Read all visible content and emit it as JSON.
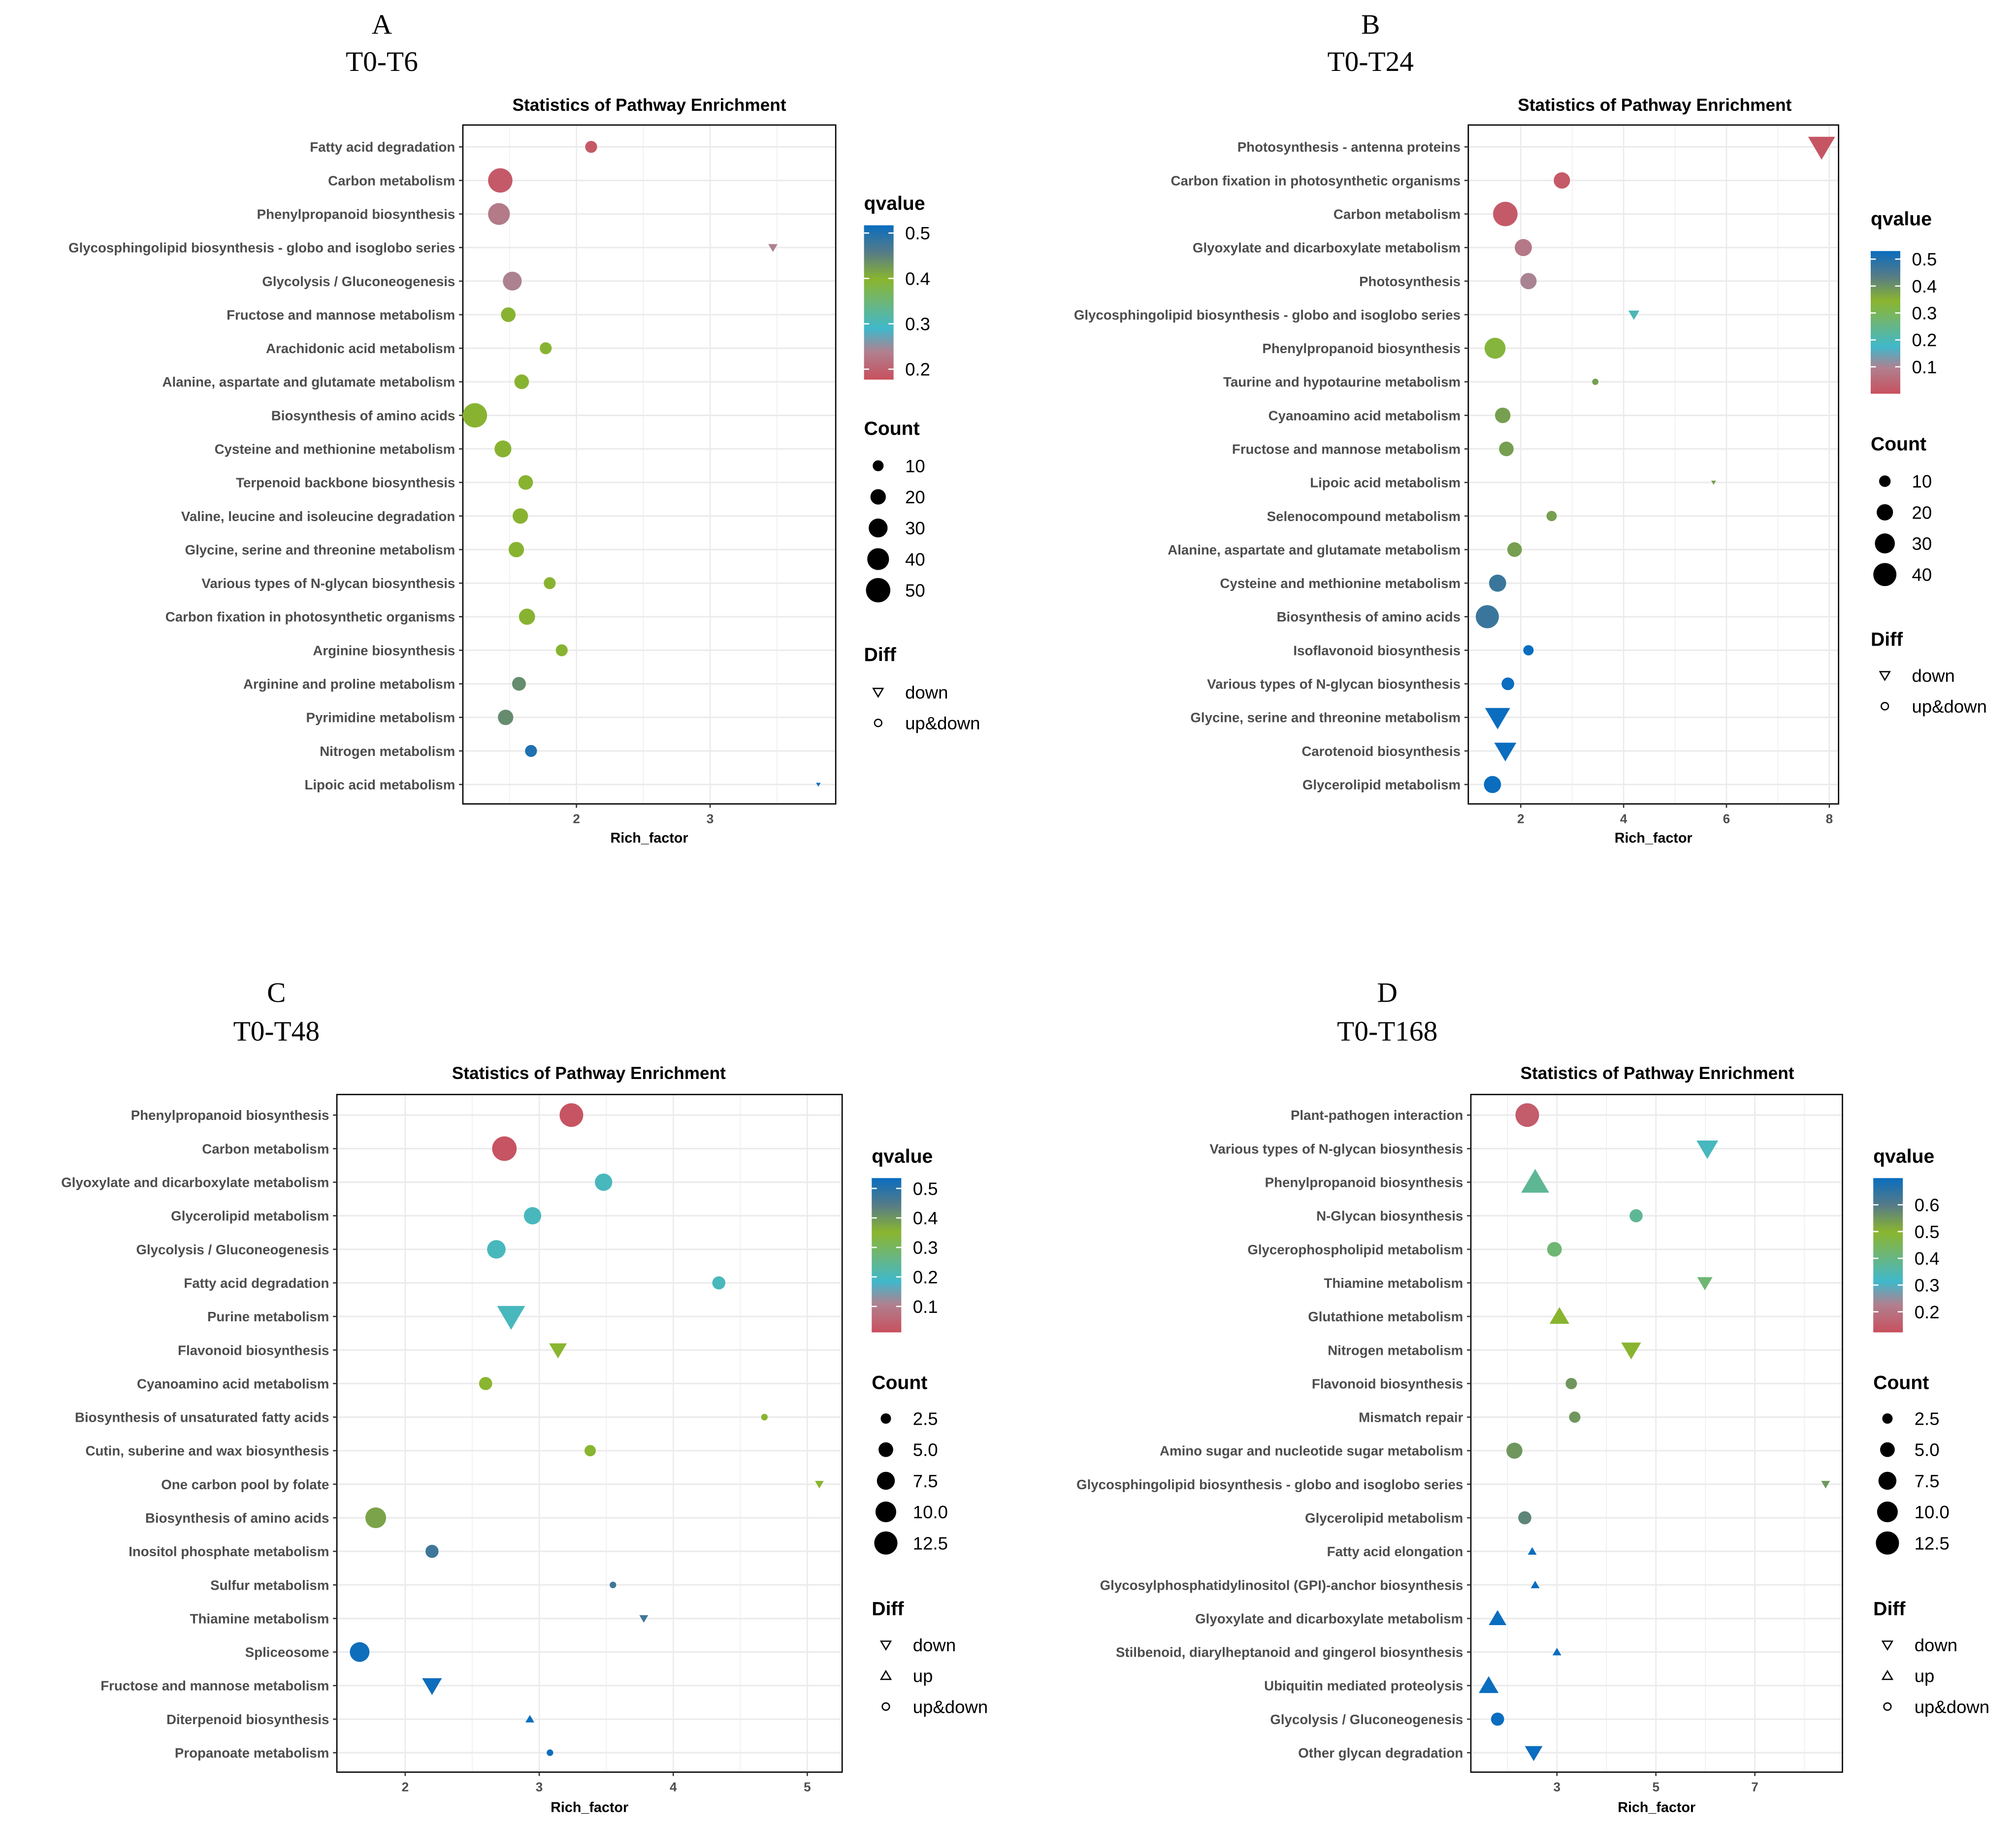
{
  "chart_data": [
    {
      "type": "scatter",
      "panel_letter": "A",
      "comparison": "T0-T6",
      "title": "Statistics of Pathway Enrichment",
      "xlabel": "Rich_factor",
      "ylabel": "",
      "xticks": [
        2,
        3
      ],
      "xlim": [
        1.15,
        3.94
      ],
      "grid": true,
      "legend_placement": "right",
      "legend": {
        "qvalue_title": "qvalue",
        "qvalue_ticks": [
          "0.5",
          "0.4",
          "0.3",
          "0.2"
        ],
        "qvalue_range": [
          0.177,
          0.517
        ],
        "count_title": "Count",
        "count_levels": [
          "10",
          "20",
          "30",
          "40",
          "50"
        ],
        "diff_title": "Diff",
        "diff_levels": [
          "down",
          "up&down"
        ]
      },
      "pathways": [
        {
          "name": "Fatty acid degradation",
          "rich_factor": 2.11,
          "count": 12,
          "qvalue": 0.19,
          "diff": "up&down"
        },
        {
          "name": "Carbon metabolism",
          "rich_factor": 1.43,
          "count": 50,
          "qvalue": 0.19,
          "diff": "up&down"
        },
        {
          "name": "Phenylpropanoid biosynthesis",
          "rich_factor": 1.42,
          "count": 40,
          "qvalue": 0.23,
          "diff": "up&down"
        },
        {
          "name": "Glycosphingolipid biosynthesis - globo and isoglobo series",
          "rich_factor": 3.47,
          "count": 4,
          "qvalue": 0.24,
          "diff": "down"
        },
        {
          "name": "Glycolysis / Gluconeogenesis",
          "rich_factor": 1.52,
          "count": 30,
          "qvalue": 0.24,
          "diff": "up&down"
        },
        {
          "name": "Fructose and mannose metabolism",
          "rich_factor": 1.49,
          "count": 18,
          "qvalue": 0.4,
          "diff": "up&down"
        },
        {
          "name": "Arachidonic acid metabolism",
          "rich_factor": 1.77,
          "count": 12,
          "qvalue": 0.4,
          "diff": "up&down"
        },
        {
          "name": "Alanine, aspartate and glutamate metabolism",
          "rich_factor": 1.59,
          "count": 18,
          "qvalue": 0.4,
          "diff": "up&down"
        },
        {
          "name": "Biosynthesis of amino acids",
          "rich_factor": 1.24,
          "count": 50,
          "qvalue": 0.4,
          "diff": "up&down"
        },
        {
          "name": "Cysteine and methionine metabolism",
          "rich_factor": 1.45,
          "count": 24,
          "qvalue": 0.4,
          "diff": "up&down"
        },
        {
          "name": "Terpenoid backbone biosynthesis",
          "rich_factor": 1.62,
          "count": 18,
          "qvalue": 0.4,
          "diff": "up&down"
        },
        {
          "name": "Valine, leucine and isoleucine degradation",
          "rich_factor": 1.58,
          "count": 20,
          "qvalue": 0.4,
          "diff": "up&down"
        },
        {
          "name": "Glycine, serine and threonine metabolism",
          "rich_factor": 1.55,
          "count": 20,
          "qvalue": 0.4,
          "diff": "up&down"
        },
        {
          "name": "Various types of N-glycan biosynthesis",
          "rich_factor": 1.8,
          "count": 12,
          "qvalue": 0.4,
          "diff": "up&down"
        },
        {
          "name": "Carbon fixation in photosynthetic organisms",
          "rich_factor": 1.63,
          "count": 22,
          "qvalue": 0.4,
          "diff": "up&down"
        },
        {
          "name": "Arginine biosynthesis",
          "rich_factor": 1.89,
          "count": 12,
          "qvalue": 0.4,
          "diff": "up&down"
        },
        {
          "name": "Arginine and proline metabolism",
          "rich_factor": 1.57,
          "count": 16,
          "qvalue": 0.44,
          "diff": "up&down"
        },
        {
          "name": "Pyrimidine metabolism",
          "rich_factor": 1.47,
          "count": 20,
          "qvalue": 0.44,
          "diff": "up&down"
        },
        {
          "name": "Nitrogen metabolism",
          "rich_factor": 1.66,
          "count": 12,
          "qvalue": 0.5,
          "diff": "up&down"
        },
        {
          "name": "Lipoic acid metabolism",
          "rich_factor": 3.81,
          "count": 1,
          "qvalue": 0.51,
          "diff": "down"
        }
      ]
    },
    {
      "type": "scatter",
      "panel_letter": "B",
      "comparison": "T0-T24",
      "title": "Statistics of Pathway Enrichment",
      "xlabel": "Rich_factor",
      "ylabel": "",
      "xticks": [
        2,
        4,
        6,
        8
      ],
      "xlim": [
        0.98,
        8.18
      ],
      "grid": true,
      "legend_placement": "right",
      "legend": {
        "qvalue_title": "qvalue",
        "qvalue_ticks": [
          "0.5",
          "0.4",
          "0.3",
          "0.2",
          "0.1"
        ],
        "qvalue_range": [
          0.0,
          0.53
        ],
        "count_title": "Count",
        "count_levels": [
          "10",
          "20",
          "30",
          "40"
        ],
        "diff_title": "Diff",
        "diff_levels": [
          "down",
          "up&down"
        ]
      },
      "pathways": [
        {
          "name": "Photosynthesis - antenna proteins",
          "rich_factor": 7.85,
          "count": 30,
          "qvalue": 0.01,
          "diff": "down"
        },
        {
          "name": "Carbon fixation in photosynthetic organisms",
          "rich_factor": 2.8,
          "count": 20,
          "qvalue": 0.02,
          "diff": "up&down"
        },
        {
          "name": "Carbon metabolism",
          "rich_factor": 1.7,
          "count": 45,
          "qvalue": 0.02,
          "diff": "up&down"
        },
        {
          "name": "Glyoxylate and dicarboxylate metabolism",
          "rich_factor": 2.05,
          "count": 22,
          "qvalue": 0.08,
          "diff": "up&down"
        },
        {
          "name": "Photosynthesis",
          "rich_factor": 2.15,
          "count": 20,
          "qvalue": 0.1,
          "diff": "up&down"
        },
        {
          "name": "Glycosphingolipid biosynthesis - globo and isoglobo series",
          "rich_factor": 4.2,
          "count": 5,
          "qvalue": 0.2,
          "diff": "down"
        },
        {
          "name": "Phenylpropanoid biosynthesis",
          "rich_factor": 1.5,
          "count": 33,
          "qvalue": 0.33,
          "diff": "up&down"
        },
        {
          "name": "Taurine and hypotaurine metabolism",
          "rich_factor": 3.45,
          "count": 3,
          "qvalue": 0.38,
          "diff": "up&down"
        },
        {
          "name": "Cyanoamino acid metabolism",
          "rich_factor": 1.65,
          "count": 18,
          "qvalue": 0.38,
          "diff": "up&down"
        },
        {
          "name": "Fructose and mannose metabolism",
          "rich_factor": 1.72,
          "count": 16,
          "qvalue": 0.38,
          "diff": "up&down"
        },
        {
          "name": "Lipoic acid metabolism",
          "rich_factor": 5.75,
          "count": 1,
          "qvalue": 0.38,
          "diff": "down"
        },
        {
          "name": "Selenocompound metabolism",
          "rich_factor": 2.6,
          "count": 8,
          "qvalue": 0.38,
          "diff": "up&down"
        },
        {
          "name": "Alanine, aspartate and glutamate metabolism",
          "rich_factor": 1.88,
          "count": 16,
          "qvalue": 0.38,
          "diff": "up&down"
        },
        {
          "name": "Cysteine and methionine metabolism",
          "rich_factor": 1.55,
          "count": 22,
          "qvalue": 0.47,
          "diff": "up&down"
        },
        {
          "name": "Biosynthesis of amino acids",
          "rich_factor": 1.35,
          "count": 40,
          "qvalue": 0.47,
          "diff": "up&down"
        },
        {
          "name": "Isoflavonoid biosynthesis",
          "rich_factor": 2.15,
          "count": 8,
          "qvalue": 0.53,
          "diff": "up&down"
        },
        {
          "name": "Various types of N-glycan biosynthesis",
          "rich_factor": 1.75,
          "count": 12,
          "qvalue": 0.53,
          "diff": "up&down"
        },
        {
          "name": "Glycine, serine and threonine metabolism",
          "rich_factor": 1.55,
          "count": 26,
          "qvalue": 0.53,
          "diff": "down"
        },
        {
          "name": "Carotenoid biosynthesis",
          "rich_factor": 1.7,
          "count": 20,
          "qvalue": 0.53,
          "diff": "down"
        },
        {
          "name": "Glycerolipid metabolism",
          "rich_factor": 1.45,
          "count": 22,
          "qvalue": 0.53,
          "diff": "up&down"
        }
      ]
    },
    {
      "type": "scatter",
      "panel_letter": "C",
      "comparison": "T0-T48",
      "title": "Statistics of Pathway Enrichment",
      "xlabel": "Rich_factor",
      "ylabel": "",
      "xticks": [
        2,
        3,
        4,
        5
      ],
      "xlim": [
        1.49,
        5.26
      ],
      "grid": true,
      "legend_placement": "right",
      "legend": {
        "qvalue_title": "qvalue",
        "qvalue_ticks": [
          "0.5",
          "0.4",
          "0.3",
          "0.2",
          "0.1"
        ],
        "qvalue_range": [
          0.012,
          0.535
        ],
        "count_title": "Count",
        "count_levels": [
          "2.5",
          "5.0",
          "7.5",
          "10.0",
          "12.5"
        ],
        "diff_title": "Diff",
        "diff_levels": [
          "down",
          "up",
          "up&down"
        ]
      },
      "pathways": [
        {
          "name": "Phenylpropanoid biosynthesis",
          "rich_factor": 3.24,
          "count": 13,
          "qvalue": 0.02,
          "diff": "up&down"
        },
        {
          "name": "Carbon metabolism",
          "rich_factor": 2.74,
          "count": 14,
          "qvalue": 0.02,
          "diff": "up&down"
        },
        {
          "name": "Glyoxylate and dicarboxylate metabolism",
          "rich_factor": 3.48,
          "count": 7,
          "qvalue": 0.2,
          "diff": "up&down"
        },
        {
          "name": "Glycerolipid metabolism",
          "rich_factor": 2.95,
          "count": 7,
          "qvalue": 0.2,
          "diff": "up&down"
        },
        {
          "name": "Glycolysis / Gluconeogenesis",
          "rich_factor": 2.68,
          "count": 8,
          "qvalue": 0.2,
          "diff": "up&down"
        },
        {
          "name": "Fatty acid degradation",
          "rich_factor": 4.34,
          "count": 4,
          "qvalue": 0.2,
          "diff": "up&down"
        },
        {
          "name": "Purine metabolism",
          "rich_factor": 2.79,
          "count": 10,
          "qvalue": 0.2,
          "diff": "down"
        },
        {
          "name": "Flavonoid biosynthesis",
          "rich_factor": 3.14,
          "count": 4,
          "qvalue": 0.35,
          "diff": "down"
        },
        {
          "name": "Cyanoamino acid metabolism",
          "rich_factor": 2.6,
          "count": 4,
          "qvalue": 0.35,
          "diff": "up&down"
        },
        {
          "name": "Biosynthesis of unsaturated fatty acids",
          "rich_factor": 4.68,
          "count": 1,
          "qvalue": 0.35,
          "diff": "up&down"
        },
        {
          "name": "Cutin, suberine and wax biosynthesis",
          "rich_factor": 3.38,
          "count": 3,
          "qvalue": 0.35,
          "diff": "up&down"
        },
        {
          "name": "One carbon pool by folate",
          "rich_factor": 5.09,
          "count": 1,
          "qvalue": 0.35,
          "diff": "down"
        },
        {
          "name": "Biosynthesis of amino acids",
          "rich_factor": 1.78,
          "count": 10,
          "qvalue": 0.38,
          "diff": "up&down"
        },
        {
          "name": "Inositol phosphate metabolism",
          "rich_factor": 2.2,
          "count": 4,
          "qvalue": 0.47,
          "diff": "up&down"
        },
        {
          "name": "Sulfur metabolism",
          "rich_factor": 3.55,
          "count": 1,
          "qvalue": 0.47,
          "diff": "up&down"
        },
        {
          "name": "Thiamine metabolism",
          "rich_factor": 3.78,
          "count": 1,
          "qvalue": 0.47,
          "diff": "down"
        },
        {
          "name": "Spliceosome",
          "rich_factor": 1.66,
          "count": 9,
          "qvalue": 0.53,
          "diff": "up&down"
        },
        {
          "name": "Fructose and mannose metabolism",
          "rich_factor": 2.2,
          "count": 5,
          "qvalue": 0.53,
          "diff": "down"
        },
        {
          "name": "Diterpenoid biosynthesis",
          "rich_factor": 2.93,
          "count": 1,
          "qvalue": 0.53,
          "diff": "up"
        },
        {
          "name": "Propanoate metabolism",
          "rich_factor": 3.08,
          "count": 1,
          "qvalue": 0.53,
          "diff": "up&down"
        }
      ]
    },
    {
      "type": "scatter",
      "panel_letter": "D",
      "comparison": "T0-T168",
      "title": "Statistics of Pathway Enrichment",
      "xlabel": "Rich_factor",
      "ylabel": "",
      "xticks": [
        3,
        5,
        7
      ],
      "xlim": [
        1.26,
        8.77
      ],
      "grid": true,
      "legend_placement": "right",
      "legend": {
        "qvalue_title": "qvalue",
        "qvalue_ticks": [
          "0.6",
          "0.5",
          "0.4",
          "0.3",
          "0.2"
        ],
        "qvalue_range": [
          0.123,
          0.7
        ],
        "count_title": "Count",
        "count_levels": [
          "2.5",
          "5.0",
          "7.5",
          "10.0",
          "12.5"
        ],
        "diff_title": "Diff",
        "diff_levels": [
          "down",
          "up",
          "up&down"
        ]
      },
      "pathways": [
        {
          "name": "Plant-pathogen interaction",
          "rich_factor": 2.4,
          "count": 13,
          "qvalue": 0.15,
          "diff": "up&down"
        },
        {
          "name": "Various types of N-glycan biosynthesis",
          "rich_factor": 6.04,
          "count": 6,
          "qvalue": 0.33,
          "diff": "down"
        },
        {
          "name": "Phenylpropanoid biosynthesis",
          "rich_factor": 2.56,
          "count": 10,
          "qvalue": 0.38,
          "diff": "up"
        },
        {
          "name": "N-Glycan biosynthesis",
          "rich_factor": 4.6,
          "count": 4,
          "qvalue": 0.38,
          "diff": "up&down"
        },
        {
          "name": "Glycerophospholipid metabolism",
          "rich_factor": 2.95,
          "count": 5,
          "qvalue": 0.42,
          "diff": "up&down"
        },
        {
          "name": "Thiamine metabolism",
          "rich_factor": 5.99,
          "count": 3,
          "qvalue": 0.42,
          "diff": "down"
        },
        {
          "name": "Glutathione metabolism",
          "rich_factor": 3.05,
          "count": 5,
          "qvalue": 0.5,
          "diff": "up"
        },
        {
          "name": "Nitrogen metabolism",
          "rich_factor": 4.5,
          "count": 5,
          "qvalue": 0.5,
          "diff": "down"
        },
        {
          "name": "Flavonoid biosynthesis",
          "rich_factor": 3.29,
          "count": 3,
          "qvalue": 0.55,
          "diff": "up&down"
        },
        {
          "name": "Mismatch repair",
          "rich_factor": 3.36,
          "count": 3,
          "qvalue": 0.55,
          "diff": "up&down"
        },
        {
          "name": "Amino sugar and nucleotide sugar metabolism",
          "rich_factor": 2.14,
          "count": 6,
          "qvalue": 0.55,
          "diff": "up&down"
        },
        {
          "name": "Glycosphingolipid biosynthesis - globo and isoglobo series",
          "rich_factor": 8.43,
          "count": 1,
          "qvalue": 0.55,
          "diff": "down"
        },
        {
          "name": "Glycerolipid metabolism",
          "rich_factor": 2.35,
          "count": 4,
          "qvalue": 0.58,
          "diff": "up&down"
        },
        {
          "name": "Fatty acid elongation",
          "rich_factor": 2.5,
          "count": 1,
          "qvalue": 0.7,
          "diff": "up"
        },
        {
          "name": "Glycosylphosphatidylinositol (GPI)-anchor biosynthesis",
          "rich_factor": 2.56,
          "count": 1,
          "qvalue": 0.7,
          "diff": "up"
        },
        {
          "name": "Glyoxylate and dicarboxylate metabolism",
          "rich_factor": 1.8,
          "count": 4,
          "qvalue": 0.7,
          "diff": "up"
        },
        {
          "name": "Stilbenoid, diarylheptanoid and gingerol biosynthesis",
          "rich_factor": 3.0,
          "count": 1,
          "qvalue": 0.7,
          "diff": "up"
        },
        {
          "name": "Ubiquitin mediated proteolysis",
          "rich_factor": 1.62,
          "count": 5,
          "qvalue": 0.7,
          "diff": "up"
        },
        {
          "name": "Glycolysis / Gluconeogenesis",
          "rich_factor": 1.8,
          "count": 4,
          "qvalue": 0.7,
          "diff": "up&down"
        },
        {
          "name": "Other glycan degradation",
          "rich_factor": 2.53,
          "count": 4,
          "qvalue": 0.7,
          "diff": "down"
        }
      ]
    }
  ],
  "colorscale": [
    "#C9505E",
    "#B0808F",
    "#40B8CB",
    "#6CB67A",
    "#8AB52E",
    "#577C86",
    "#0A6DBF"
  ]
}
